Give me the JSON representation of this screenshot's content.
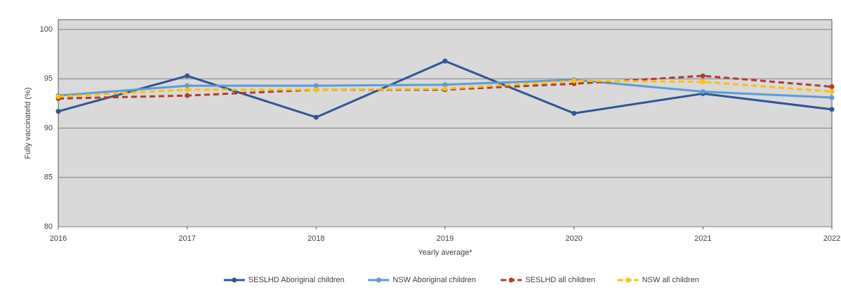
{
  "chart_data": {
    "type": "line",
    "x": [
      2016,
      2017,
      2018,
      2019,
      2020,
      2021,
      2022
    ],
    "xlim": [
      2016,
      2022
    ],
    "xticks": [
      2016,
      2017,
      2018,
      2019,
      2020,
      2021,
      2022
    ],
    "ylim": [
      80,
      101
    ],
    "yticks": [
      80,
      85,
      90,
      95,
      100
    ],
    "grid": true,
    "x_label": "Yearly average*",
    "y_label": "Fully vaccinatefd (%)",
    "legend": "bottom",
    "series": [
      {
        "name": "SESLHD Aboriginal children",
        "color": "#2f5597",
        "dashed": false,
        "values": [
          91.7,
          95.3,
          91.1,
          96.8,
          91.5,
          93.5,
          91.9
        ]
      },
      {
        "name": "NSW Aboriginal children",
        "color": "#5b9bd5",
        "dashed": false,
        "values": [
          93.3,
          94.3,
          94.3,
          94.4,
          94.9,
          93.7,
          93.1
        ]
      },
      {
        "name": "SESLHD all children",
        "color": "#b03a2e",
        "dashed": true,
        "values": [
          93.0,
          93.3,
          93.9,
          93.9,
          94.5,
          95.3,
          94.2
        ]
      },
      {
        "name": "NSW all children",
        "color": "#ffc000",
        "dashed": true,
        "values": [
          93.2,
          93.9,
          93.9,
          94.0,
          94.8,
          94.7,
          93.7
        ]
      }
    ]
  }
}
